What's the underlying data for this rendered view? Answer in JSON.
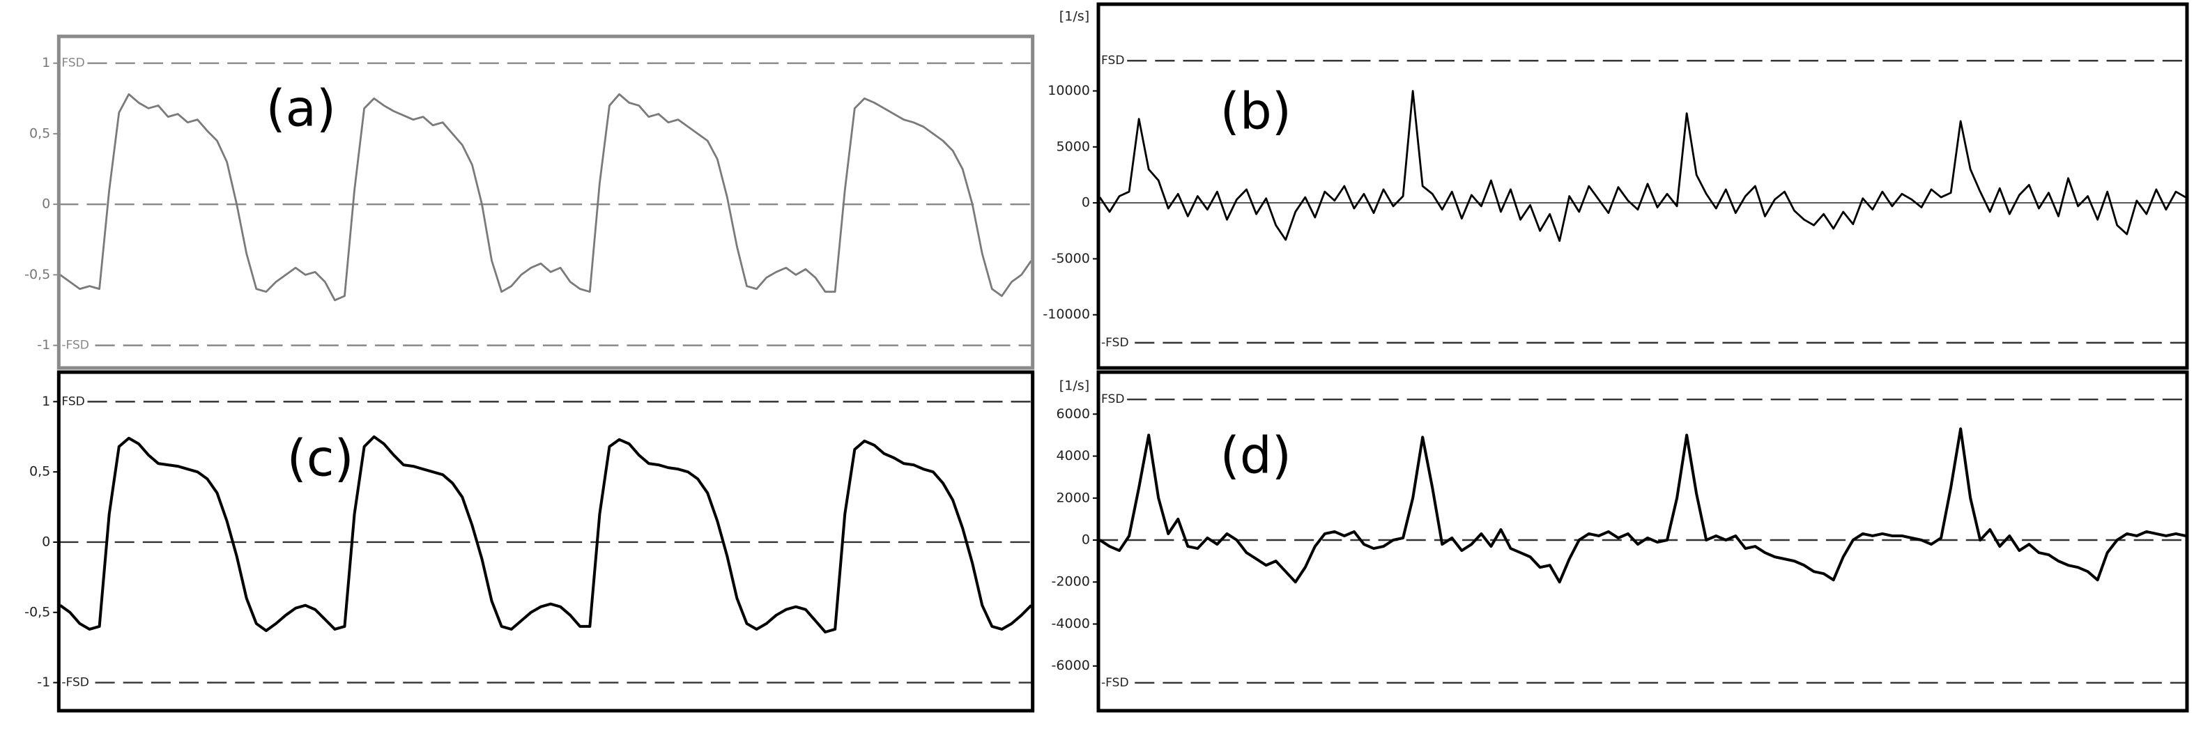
{
  "chart_data": [
    {
      "type": "line",
      "annotation": "(a)",
      "color": "#7a7a7a",
      "frame_color": "#8a8a8a",
      "ylim": [
        -1.16,
        1.19
      ],
      "yticks": [
        1,
        {
          "value": 0.5,
          "label": "0,5"
        },
        0,
        {
          "value": -0.5,
          "label": "-0,5"
        },
        -1
      ],
      "reference_lines": [
        {
          "value": 1,
          "label": "FSD",
          "style": "dashed"
        },
        {
          "value": 0,
          "style": "dashed"
        },
        {
          "value": -1,
          "label": "-FSD",
          "style": "dashed"
        }
      ],
      "values": [
        -0.5,
        -0.55,
        -0.6,
        -0.58,
        -0.6,
        0.1,
        0.65,
        0.78,
        0.72,
        0.68,
        0.7,
        0.62,
        0.64,
        0.58,
        0.6,
        0.52,
        0.45,
        0.3,
        0.0,
        -0.35,
        -0.6,
        -0.62,
        -0.55,
        -0.5,
        -0.45,
        -0.5,
        -0.48,
        -0.55,
        -0.68,
        -0.65,
        0.1,
        0.68,
        0.75,
        0.7,
        0.66,
        0.63,
        0.6,
        0.62,
        0.56,
        0.58,
        0.5,
        0.42,
        0.28,
        0.0,
        -0.4,
        -0.62,
        -0.58,
        -0.5,
        -0.45,
        -0.42,
        -0.48,
        -0.45,
        -0.55,
        -0.6,
        -0.62,
        0.15,
        0.7,
        0.78,
        0.72,
        0.7,
        0.62,
        0.64,
        0.58,
        0.6,
        0.55,
        0.5,
        0.45,
        0.32,
        0.05,
        -0.3,
        -0.58,
        -0.6,
        -0.52,
        -0.48,
        -0.45,
        -0.5,
        -0.46,
        -0.52,
        -0.62,
        -0.62,
        0.1,
        0.68,
        0.75,
        0.72,
        0.68,
        0.64,
        0.6,
        0.58,
        0.55,
        0.5,
        0.45,
        0.38,
        0.25,
        0.0,
        -0.35,
        -0.6,
        -0.65,
        -0.55,
        -0.5,
        -0.4
      ]
    },
    {
      "type": "line",
      "annotation": "(b)",
      "unit": "[1/s]",
      "color": "#000000",
      "frame_color": "#000000",
      "ylim": [
        -14750,
        17750
      ],
      "yticks": [
        10000,
        5000,
        0,
        -5000,
        -10000
      ],
      "reference_lines": [
        {
          "value": 12700,
          "label": "FSD",
          "style": "dashed"
        },
        {
          "value": 0,
          "style": "solid"
        },
        {
          "value": -12500,
          "label": "-FSD",
          "style": "dashed"
        }
      ],
      "values": [
        500,
        -800,
        600,
        1000,
        7500,
        3000,
        2000,
        -500,
        800,
        -1200,
        600,
        -600,
        1000,
        -1500,
        300,
        1200,
        -1000,
        400,
        -2000,
        -3300,
        -800,
        500,
        -1300,
        1000,
        200,
        1500,
        -500,
        800,
        -900,
        1200,
        -300,
        600,
        10000,
        1500,
        800,
        -600,
        1000,
        -1400,
        700,
        -300,
        2000,
        -800,
        1200,
        -1500,
        -200,
        -2500,
        -1000,
        -3400,
        600,
        -800,
        1500,
        300,
        -900,
        1400,
        200,
        -600,
        1700,
        -400,
        800,
        -300,
        8000,
        2500,
        800,
        -500,
        1200,
        -900,
        600,
        1500,
        -1200,
        300,
        1000,
        -700,
        -1500,
        -2000,
        -1000,
        -2300,
        -800,
        -1900,
        400,
        -600,
        1000,
        -300,
        800,
        300,
        -400,
        1200,
        500,
        900,
        7300,
        3000,
        1000,
        -800,
        1300,
        -1000,
        700,
        1600,
        -500,
        900,
        -1200,
        2200,
        -300,
        600,
        -1500,
        1000,
        -2000,
        -2800,
        200,
        -1000,
        1200,
        -600,
        1000,
        500
      ]
    },
    {
      "type": "line",
      "annotation": "(c)",
      "color": "#000000",
      "frame_color": "#000000",
      "ylim": [
        -1.2,
        1.21
      ],
      "yticks": [
        1,
        {
          "value": 0.5,
          "label": "0,5"
        },
        0,
        {
          "value": -0.5,
          "label": "-0,5"
        },
        -1
      ],
      "reference_lines": [
        {
          "value": 1,
          "label": "FSD",
          "style": "dashed"
        },
        {
          "value": 0,
          "style": "dashed"
        },
        {
          "value": -1,
          "label": "-FSD",
          "style": "dashed"
        }
      ],
      "values": [
        -0.45,
        -0.5,
        -0.58,
        -0.62,
        -0.6,
        0.2,
        0.68,
        0.74,
        0.7,
        0.62,
        0.56,
        0.55,
        0.54,
        0.52,
        0.5,
        0.45,
        0.35,
        0.15,
        -0.1,
        -0.4,
        -0.58,
        -0.63,
        -0.58,
        -0.52,
        -0.47,
        -0.45,
        -0.48,
        -0.55,
        -0.62,
        -0.6,
        0.2,
        0.68,
        0.75,
        0.7,
        0.62,
        0.55,
        0.54,
        0.52,
        0.5,
        0.48,
        0.42,
        0.32,
        0.12,
        -0.12,
        -0.42,
        -0.6,
        -0.62,
        -0.56,
        -0.5,
        -0.46,
        -0.44,
        -0.46,
        -0.52,
        -0.6,
        -0.6,
        0.2,
        0.68,
        0.73,
        0.7,
        0.62,
        0.56,
        0.55,
        0.53,
        0.52,
        0.5,
        0.45,
        0.35,
        0.15,
        -0.1,
        -0.4,
        -0.58,
        -0.62,
        -0.58,
        -0.52,
        -0.48,
        -0.46,
        -0.48,
        -0.56,
        -0.64,
        -0.62,
        0.2,
        0.66,
        0.72,
        0.69,
        0.63,
        0.6,
        0.56,
        0.55,
        0.52,
        0.5,
        0.42,
        0.3,
        0.1,
        -0.15,
        -0.45,
        -0.6,
        -0.62,
        -0.58,
        -0.52,
        -0.45
      ]
    },
    {
      "type": "line",
      "annotation": "(d)",
      "unit": "[1/s]",
      "color": "#000000",
      "frame_color": "#000000",
      "ylim": [
        -8130,
        8000
      ],
      "yticks": [
        6000,
        4000,
        2000,
        0,
        -2000,
        -4000,
        -6000
      ],
      "reference_lines": [
        {
          "value": 6700,
          "label": "FSD",
          "style": "dashed"
        },
        {
          "value": 0,
          "style": "dashed"
        },
        {
          "value": -6800,
          "label": "-FSD",
          "style": "dashed"
        }
      ],
      "values": [
        0,
        -300,
        -500,
        200,
        2500,
        5000,
        2000,
        300,
        1000,
        -300,
        -400,
        100,
        -200,
        300,
        0,
        -600,
        -900,
        -1200,
        -1000,
        -1500,
        -2000,
        -1300,
        -300,
        300,
        400,
        200,
        400,
        -200,
        -400,
        -300,
        0,
        100,
        2000,
        4900,
        2500,
        -200,
        100,
        -500,
        -200,
        300,
        -300,
        500,
        -400,
        -600,
        -800,
        -1300,
        -1200,
        -2000,
        -900,
        0,
        300,
        200,
        400,
        100,
        300,
        -200,
        100,
        -100,
        0,
        2000,
        5000,
        2200,
        0,
        200,
        0,
        200,
        -400,
        -300,
        -600,
        -800,
        -900,
        -1000,
        -1200,
        -1500,
        -1600,
        -1900,
        -800,
        0,
        300,
        200,
        300,
        200,
        200,
        100,
        0,
        -200,
        100,
        2500,
        5300,
        2000,
        0,
        500,
        -300,
        200,
        -500,
        -200,
        -600,
        -700,
        -1000,
        -1200,
        -1300,
        -1500,
        -1900,
        -600,
        0,
        300,
        200,
        400,
        300,
        200,
        300,
        200
      ]
    }
  ]
}
